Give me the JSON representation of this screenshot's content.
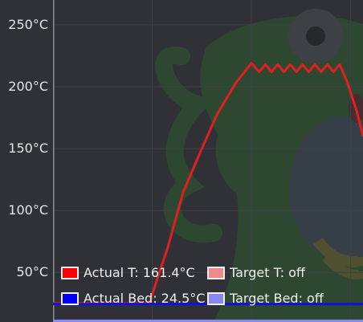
{
  "chart_data": {
    "type": "line",
    "xlabel": "",
    "ylabel": "",
    "ylim": [
      10,
      270
    ],
    "yticks": [
      {
        "value": 250,
        "label": "250°C"
      },
      {
        "value": 200,
        "label": "200°C"
      },
      {
        "value": 150,
        "label": "150°C"
      },
      {
        "value": 100,
        "label": "100°C"
      },
      {
        "value": 50,
        "label": "50°C"
      }
    ],
    "grid": true,
    "legend_position": "bottom-left",
    "xlim": [
      0,
      100
    ],
    "series": [
      {
        "name": "Actual T",
        "color": "#e02020",
        "x": [
          0,
          31,
          37,
          42,
          48,
          53,
          59,
          64,
          66.5,
          68.5,
          70.5,
          72.5,
          74.5,
          76.5,
          78.5,
          80.5,
          82.5,
          84.5,
          86.5,
          88.5,
          90.5,
          92.5,
          95,
          98,
          100
        ],
        "y": [
          25,
          25,
          70,
          115,
          150,
          178,
          203,
          219,
          212,
          218,
          212,
          218,
          212,
          218,
          212,
          218,
          212,
          218,
          212,
          218,
          212,
          218,
          203,
          180,
          160
        ]
      },
      {
        "name": "Actual Bed",
        "color": "#1010e0",
        "x": [
          0,
          10,
          20,
          30,
          40,
          50,
          60,
          70,
          80,
          90,
          100
        ],
        "y": [
          24.5,
          24.3,
          24.6,
          24.4,
          24.5,
          24.6,
          24.4,
          24.5,
          24.6,
          24.4,
          24.5
        ]
      },
      {
        "name": "Target Bed",
        "color": "#8888ee",
        "x": [
          0,
          100
        ],
        "y": [
          11,
          11
        ]
      }
    ]
  },
  "legend": {
    "actual_t": {
      "label": "Actual T: 161.4°C",
      "color": "#ff0000"
    },
    "target_t": {
      "label": "Target T: off",
      "color": "#f08a8a"
    },
    "actual_bed": {
      "label": "Actual Bed: 24.5°C",
      "color": "#0000ee"
    },
    "target_bed": {
      "label": "Target Bed: off",
      "color": "#8888ee"
    }
  },
  "colors": {
    "background": "#2f3136",
    "grid": "#3f4248",
    "axis": "#8a8d93",
    "watermark": "#2e5a2e"
  }
}
